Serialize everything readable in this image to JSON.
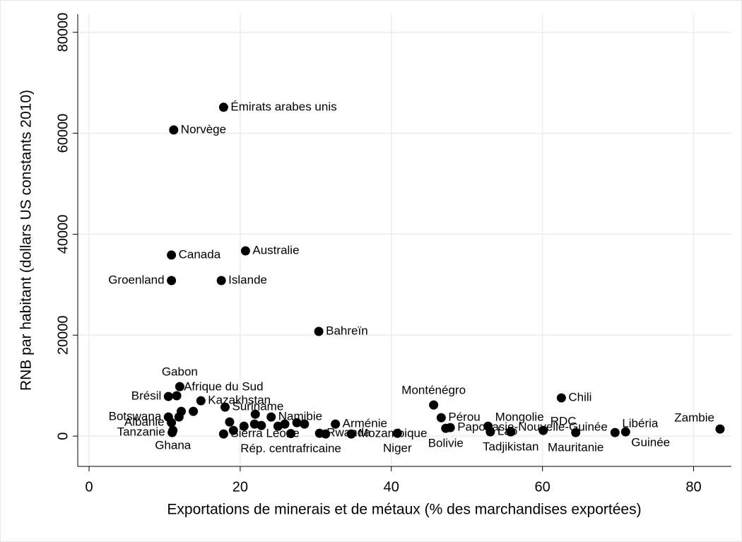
{
  "chart_data": {
    "type": "scatter",
    "xlabel": "Exportations de minerais et de métaux (% des marchandises exportées)",
    "ylabel": "RNB par habitant (dollars US constants 2010)",
    "xlim": [
      -1.5,
      85
    ],
    "ylim": [
      -6000,
      83600
    ],
    "xticks": [
      0,
      20,
      40,
      60,
      80
    ],
    "yticks": [
      0,
      20000,
      40000,
      60000,
      80000
    ],
    "grid": true,
    "color": "#000000",
    "labels": [
      "Émirats arabes unis",
      "Norvège",
      "Canada",
      "Australie",
      "Groenland",
      "Islande",
      "Bahreïn",
      "Gabon",
      "Brésil",
      "Afrique du Sud",
      "Kazakhstan",
      "Suriname",
      "Botswana",
      "Albanie",
      "Tanzanie",
      "Ghana",
      "Sierra Leone",
      "Rép. centrafricaine",
      "Namibie",
      "Arménie",
      "Rwanda",
      "Mozambique",
      "Niger",
      "Monténégro",
      "Pérou",
      "Papouasie-Nouvelle-Guinée",
      "Bolivie",
      "Mongolie",
      "Lao",
      "Tadjikistan",
      "RDC",
      "Chili",
      "Mauritanie",
      "Libéria",
      "Guinée",
      "Zambie",
      null,
      null,
      null,
      null,
      null,
      null,
      null,
      null,
      null,
      null,
      null,
      null,
      null,
      null
    ],
    "x": [
      17.8,
      11.2,
      10.9,
      20.7,
      10.9,
      17.5,
      30.4,
      12.0,
      10.5,
      11.6,
      14.8,
      18.0,
      10.5,
      10.9,
      11.0,
      11.1,
      17.8,
      26.7,
      24.1,
      32.6,
      30.5,
      34.7,
      40.8,
      45.6,
      46.6,
      47.8,
      47.2,
      52.8,
      53.1,
      55.8,
      60.1,
      62.5,
      64.4,
      69.6,
      71.0,
      83.5,
      12.2,
      13.8,
      11.9,
      18.6,
      19.1,
      20.5,
      21.9,
      22.8,
      25.0,
      25.9,
      27.5,
      28.5,
      31.3,
      22.0
    ],
    "values": [
      65150,
      60660,
      35870,
      36700,
      30820,
      30820,
      20740,
      9800,
      7850,
      8000,
      7000,
      5740,
      3780,
      2660,
      700,
      1120,
      420,
      500,
      3780,
      2380,
      560,
      420,
      560,
      6160,
      3640,
      1680,
      1540,
      1960,
      840,
      840,
      1120,
      7570,
      700,
      700,
      840,
      1400,
      4900,
      4900,
      3780,
      2800,
      1120,
      1960,
      2380,
      2100,
      1960,
      2380,
      2660,
      2380,
      420,
      4340
    ]
  }
}
